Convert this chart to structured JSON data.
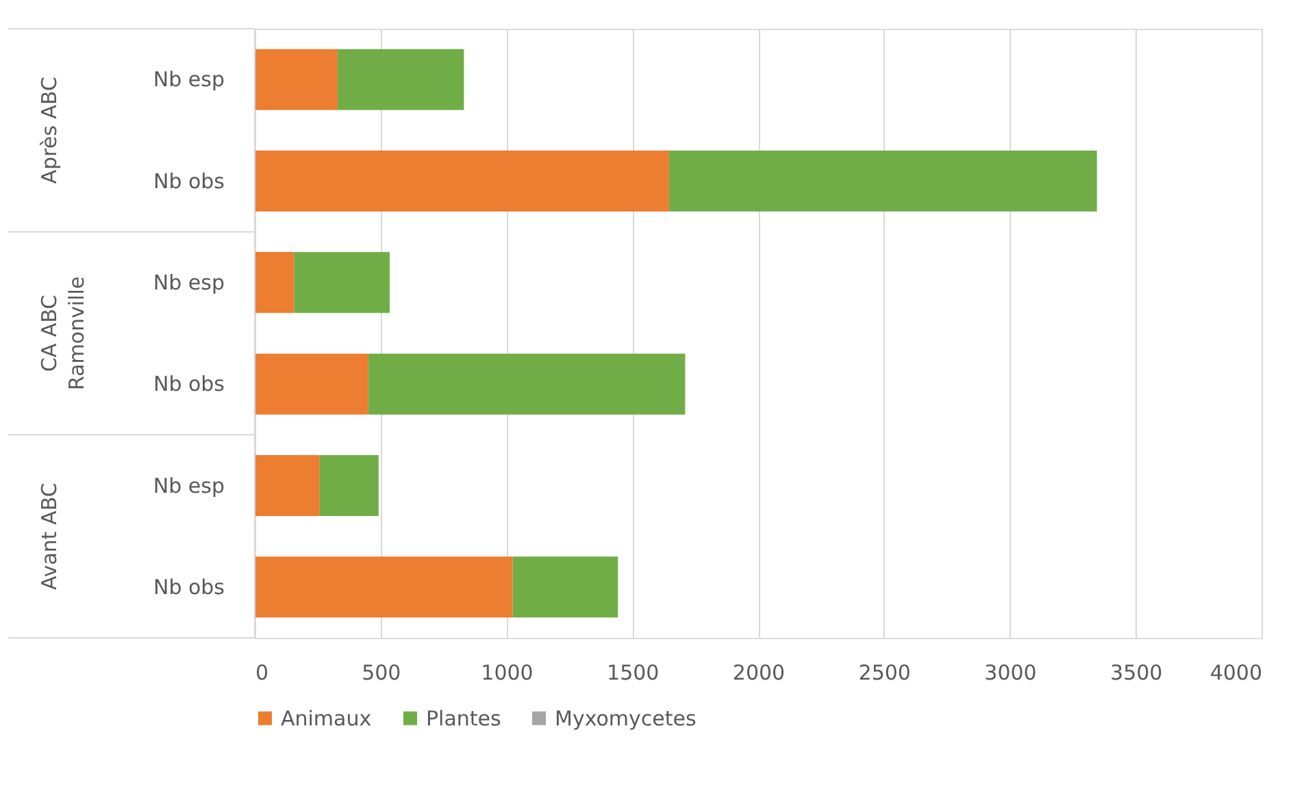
{
  "chart_data": {
    "type": "bar",
    "orientation": "horizontal",
    "stacked": true,
    "categories": [
      "Nb esp",
      "Nb obs",
      "Nb esp",
      "Nb obs",
      "Nb esp",
      "Nb obs"
    ],
    "annotations": [
      "Après ABC",
      "CA ABC\nRamonville",
      "Avant ABC"
    ],
    "series": [
      {
        "name": "Animaux",
        "color": "#ed7d31",
        "values": [
          329,
          1646,
          156,
          451,
          258,
          1025
        ]
      },
      {
        "name": "Plantes",
        "color": "#70ad47",
        "values": [
          502,
          1700,
          380,
          1259,
          234,
          418
        ]
      },
      {
        "name": "Myxomycetes",
        "color": "#a5a5a5",
        "values": [
          0,
          0,
          0,
          0,
          0,
          0
        ]
      }
    ],
    "xlim": [
      0,
      4000
    ],
    "xticks": [
      0,
      500,
      1000,
      1500,
      2000,
      2500,
      3000,
      3500,
      4000
    ],
    "grid": "x",
    "legend": "bottom"
  }
}
